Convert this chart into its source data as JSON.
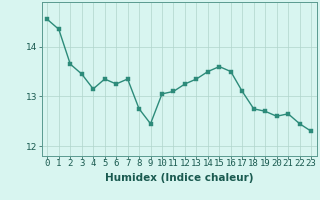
{
  "x": [
    0,
    1,
    2,
    3,
    4,
    5,
    6,
    7,
    8,
    9,
    10,
    11,
    12,
    13,
    14,
    15,
    16,
    17,
    18,
    19,
    20,
    21,
    22,
    23
  ],
  "y": [
    14.55,
    14.35,
    13.65,
    13.45,
    13.15,
    13.35,
    13.25,
    13.35,
    12.75,
    12.45,
    13.05,
    13.1,
    13.25,
    13.35,
    13.5,
    13.6,
    13.5,
    13.1,
    12.75,
    12.7,
    12.6,
    12.65,
    12.45,
    12.3
  ],
  "line_color": "#2d8b7a",
  "marker_color": "#2d8b7a",
  "bg_color": "#d8f5f0",
  "grid_color": "#b0d4cc",
  "xlabel": "Humidex (Indice chaleur)",
  "ylim": [
    11.8,
    14.9
  ],
  "yticks": [
    12,
    13,
    14
  ],
  "xlabel_fontsize": 7.5,
  "tick_fontsize": 6.5,
  "line_width": 1.0,
  "marker_size": 2.5
}
